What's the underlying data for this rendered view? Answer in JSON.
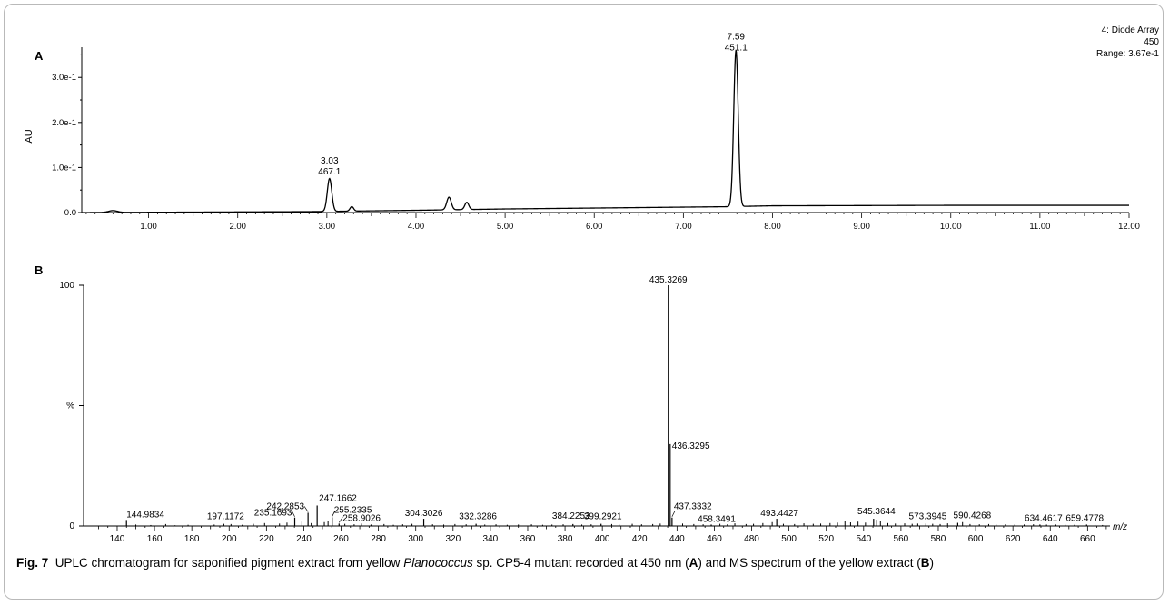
{
  "figure": {
    "caption_label": "Fig. 7",
    "caption_pre": "UPLC chromatogram for saponified pigment extract from yellow",
    "caption_species": "Planococcus",
    "caption_mid1": "sp. CP5-4 mutant recorded at 450 nm (",
    "caption_a": "A",
    "caption_mid2": ") and MS spectrum of the yellow extract (",
    "caption_b": "B",
    "caption_end": ")"
  },
  "chart_data": [
    {
      "type": "line",
      "panel_label": "A",
      "ylabel": "AU",
      "xlim": [
        0.25,
        12.0
      ],
      "ylim": [
        0.0,
        0.367
      ],
      "x_tick_labels": [
        "1.00",
        "2.00",
        "3.00",
        "4.00",
        "5.00",
        "6.00",
        "7.00",
        "8.00",
        "9.00",
        "10.00",
        "11.00",
        "12.00"
      ],
      "x_ticks": [
        1,
        2,
        3,
        4,
        5,
        6,
        7,
        8,
        9,
        10,
        11,
        12
      ],
      "y_tick_labels": [
        "0.0",
        "1.0e-1",
        "2.0e-1",
        "3.0e-1"
      ],
      "y_ticks": [
        0,
        0.1,
        0.2,
        0.3
      ],
      "header": [
        "4: Diode Array",
        "450",
        "Range: 3.67e-1"
      ],
      "series": [
        {
          "baseline": [
            [
              0.25,
              0.0
            ],
            [
              2.8,
              0.002
            ],
            [
              4.0,
              0.005
            ],
            [
              5.0,
              0.008
            ],
            [
              6.0,
              0.01
            ],
            [
              7.0,
              0.012
            ],
            [
              7.5,
              0.013
            ],
            [
              8.0,
              0.015
            ],
            [
              10.0,
              0.016
            ],
            [
              12.0,
              0.016
            ]
          ],
          "peaks": [
            {
              "rt": 0.6,
              "height": 0.004,
              "width": 0.05
            },
            {
              "rt": 3.03,
              "height": 0.073,
              "width": 0.025
            },
            {
              "rt": 3.28,
              "height": 0.01,
              "width": 0.02
            },
            {
              "rt": 4.37,
              "height": 0.028,
              "width": 0.025
            },
            {
              "rt": 4.57,
              "height": 0.016,
              "width": 0.022
            },
            {
              "rt": 7.59,
              "height": 0.347,
              "width": 0.025
            }
          ]
        }
      ],
      "annotations": [
        {
          "rt": 7.59,
          "y": 0.36,
          "lines": [
            "7.59",
            "451.1"
          ]
        },
        {
          "rt": 3.03,
          "y": 0.085,
          "lines": [
            "3.03",
            "467.1"
          ]
        }
      ]
    },
    {
      "type": "bar",
      "panel_label": "B",
      "ylabel": "%",
      "xlabel": "m/z",
      "xlim": [
        122,
        672
      ],
      "ylim": [
        0,
        100
      ],
      "x_tick_labels": [
        "140",
        "160",
        "180",
        "200",
        "220",
        "240",
        "260",
        "280",
        "300",
        "320",
        "340",
        "360",
        "380",
        "400",
        "420",
        "440",
        "460",
        "480",
        "500",
        "520",
        "540",
        "560",
        "580",
        "600",
        "620",
        "640",
        "660"
      ],
      "x_ticks": [
        140,
        160,
        180,
        200,
        220,
        240,
        260,
        280,
        300,
        320,
        340,
        360,
        380,
        400,
        420,
        440,
        460,
        480,
        500,
        520,
        540,
        560,
        580,
        600,
        620,
        640,
        660
      ],
      "y_tick_labels": [
        "0",
        "%",
        "100"
      ],
      "y_ticks": [
        0,
        50,
        100
      ],
      "peaks": [
        {
          "mz": 435.3269,
          "intensity": 100,
          "label": "435.3269"
        },
        {
          "mz": 436.3295,
          "intensity": 34,
          "label": "436.3295"
        },
        {
          "mz": 437.3332,
          "intensity": 3.5,
          "label": "437.3332"
        },
        {
          "mz": 247.1662,
          "intensity": 8.5,
          "label": "247.1662"
        },
        {
          "mz": 242.2853,
          "intensity": 5.5,
          "label": "242.2853"
        },
        {
          "mz": 235.1693,
          "intensity": 3.5,
          "label": "235.1693"
        },
        {
          "mz": 255.2335,
          "intensity": 3.6,
          "label": "255.2335"
        },
        {
          "mz": 258.9026,
          "intensity": 1.0,
          "label": "258.9026"
        },
        {
          "mz": 144.9834,
          "intensity": 2.5,
          "label": "144.9834"
        },
        {
          "mz": 197.1172,
          "intensity": 0.9,
          "label": "197.1172"
        },
        {
          "mz": 304.3026,
          "intensity": 3.0,
          "label": "304.3026"
        },
        {
          "mz": 332.3286,
          "intensity": 0.9,
          "label": "332.3286"
        },
        {
          "mz": 384.2253,
          "intensity": 0.8,
          "label": "384.2253"
        },
        {
          "mz": 399.2921,
          "intensity": 0.9,
          "label": "399.2921"
        },
        {
          "mz": 458.3491,
          "intensity": 0.6,
          "label": "458.3491"
        },
        {
          "mz": 493.4427,
          "intensity": 3.0,
          "label": "493.4427"
        },
        {
          "mz": 545.3644,
          "intensity": 3.0,
          "label": "545.3644"
        },
        {
          "mz": 573.3945,
          "intensity": 1.0,
          "label": "573.3945"
        },
        {
          "mz": 590.4268,
          "intensity": 1.3,
          "label": "590.4268"
        },
        {
          "mz": 634.4617,
          "intensity": 0.6,
          "label": "634.4617"
        },
        {
          "mz": 659.4778,
          "intensity": 0.6,
          "label": "659.4778"
        }
      ],
      "minor_peaks": [
        [
          150,
          0.6
        ],
        [
          158,
          0.4
        ],
        [
          166,
          0.8
        ],
        [
          171,
          0.3
        ],
        [
          178,
          0.5
        ],
        [
          186,
          0.4
        ],
        [
          192,
          0.6
        ],
        [
          201,
          0.8
        ],
        [
          207,
          0.5
        ],
        [
          213,
          0.9
        ],
        [
          219,
          1.2
        ],
        [
          223,
          2.0
        ],
        [
          227,
          1.0
        ],
        [
          231,
          1.4
        ],
        [
          239,
          1.8
        ],
        [
          244,
          1.2
        ],
        [
          251,
          1.6
        ],
        [
          253,
          2.2
        ],
        [
          262,
          0.9
        ],
        [
          267,
          0.7
        ],
        [
          271,
          1.0
        ],
        [
          276,
          0.6
        ],
        [
          283,
          0.8
        ],
        [
          288,
          0.5
        ],
        [
          293,
          0.7
        ],
        [
          298,
          0.9
        ],
        [
          309,
          0.7
        ],
        [
          315,
          0.6
        ],
        [
          321,
          0.8
        ],
        [
          327,
          0.7
        ],
        [
          337,
          0.6
        ],
        [
          343,
          0.7
        ],
        [
          349,
          0.5
        ],
        [
          355,
          0.6
        ],
        [
          362,
          0.7
        ],
        [
          368,
          0.5
        ],
        [
          373,
          0.6
        ],
        [
          379,
          0.7
        ],
        [
          389,
          0.6
        ],
        [
          394,
          0.7
        ],
        [
          405,
          0.8
        ],
        [
          409,
          0.6
        ],
        [
          416,
          0.9
        ],
        [
          421,
          0.7
        ],
        [
          427,
          0.8
        ],
        [
          431,
          1.0
        ],
        [
          443,
          1.0
        ],
        [
          449,
          0.8
        ],
        [
          454,
          0.7
        ],
        [
          463,
          0.9
        ],
        [
          467,
          0.7
        ],
        [
          471,
          1.1
        ],
        [
          477,
          0.8
        ],
        [
          481,
          0.9
        ],
        [
          486,
          1.2
        ],
        [
          491,
          1.6
        ],
        [
          497,
          0.9
        ],
        [
          503,
          0.8
        ],
        [
          508,
          1.1
        ],
        [
          513,
          0.9
        ],
        [
          517,
          1.0
        ],
        [
          522,
          1.2
        ],
        [
          526,
          1.4
        ],
        [
          530,
          2.2
        ],
        [
          533,
          1.5
        ],
        [
          537,
          1.8
        ],
        [
          541,
          1.4
        ],
        [
          547,
          2.6
        ],
        [
          549,
          1.9
        ],
        [
          553,
          1.2
        ],
        [
          557,
          1.0
        ],
        [
          562,
          1.1
        ],
        [
          566,
          0.9
        ],
        [
          569,
          1.0
        ],
        [
          577,
          0.9
        ],
        [
          581,
          0.8
        ],
        [
          585,
          1.1
        ],
        [
          593,
          1.6
        ],
        [
          597,
          0.8
        ],
        [
          602,
          0.7
        ],
        [
          607,
          0.8
        ],
        [
          611,
          0.6
        ],
        [
          616,
          0.7
        ],
        [
          621,
          0.6
        ],
        [
          626,
          0.6
        ],
        [
          631,
          0.7
        ],
        [
          638,
          0.6
        ],
        [
          643,
          0.6
        ],
        [
          648,
          0.5
        ],
        [
          653,
          0.5
        ],
        [
          664,
          0.5
        ],
        [
          668,
          0.4
        ]
      ]
    }
  ]
}
